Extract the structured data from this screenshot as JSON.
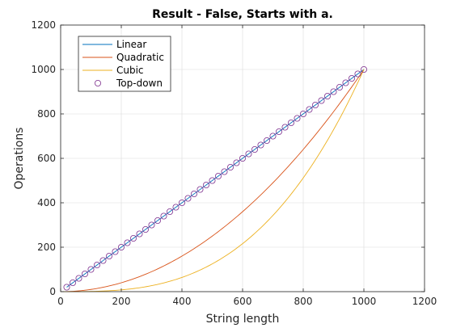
{
  "chart_data": {
    "type": "line",
    "title": "Result - False, Starts with a.",
    "xlabel": "String length",
    "ylabel": "Operations",
    "xlim": [
      0,
      1200
    ],
    "ylim": [
      0,
      1200
    ],
    "xticks": [
      0,
      200,
      400,
      600,
      800,
      1000,
      1200
    ],
    "yticks": [
      0,
      200,
      400,
      600,
      800,
      1000,
      1200
    ],
    "grid": true,
    "legend_position": "top-left",
    "series": [
      {
        "name": "Linear",
        "color": "#0072BD",
        "style": "line",
        "x": [
          20,
          1000
        ],
        "y": [
          20,
          1000
        ]
      },
      {
        "name": "Quadratic",
        "color": "#D95319",
        "style": "line",
        "x": [
          0,
          100,
          200,
          300,
          400,
          500,
          600,
          700,
          800,
          900,
          1000
        ],
        "y": [
          0,
          10,
          40,
          90,
          160,
          250,
          360,
          490,
          640,
          810,
          1000
        ]
      },
      {
        "name": "Cubic",
        "color": "#EDB120",
        "style": "line",
        "x": [
          0,
          100,
          200,
          300,
          400,
          500,
          600,
          700,
          800,
          900,
          1000
        ],
        "y": [
          0,
          1,
          8,
          27,
          64,
          125,
          216,
          343,
          512,
          729,
          1000
        ]
      },
      {
        "name": "Top-down",
        "color": "#7E2F8E",
        "style": "markers",
        "marker": "circle",
        "x": [
          20,
          40,
          60,
          80,
          100,
          120,
          140,
          160,
          180,
          200,
          220,
          240,
          260,
          280,
          300,
          320,
          340,
          360,
          380,
          400,
          420,
          440,
          460,
          480,
          500,
          520,
          540,
          560,
          580,
          600,
          620,
          640,
          660,
          680,
          700,
          720,
          740,
          760,
          780,
          800,
          820,
          840,
          860,
          880,
          900,
          920,
          940,
          960,
          980,
          1000
        ],
        "y": [
          20,
          40,
          60,
          80,
          100,
          120,
          140,
          160,
          180,
          200,
          220,
          240,
          260,
          280,
          300,
          320,
          340,
          360,
          380,
          400,
          420,
          440,
          460,
          480,
          500,
          520,
          540,
          560,
          580,
          600,
          620,
          640,
          660,
          680,
          700,
          720,
          740,
          760,
          780,
          800,
          820,
          840,
          860,
          880,
          900,
          920,
          940,
          960,
          980,
          1000
        ]
      }
    ]
  }
}
